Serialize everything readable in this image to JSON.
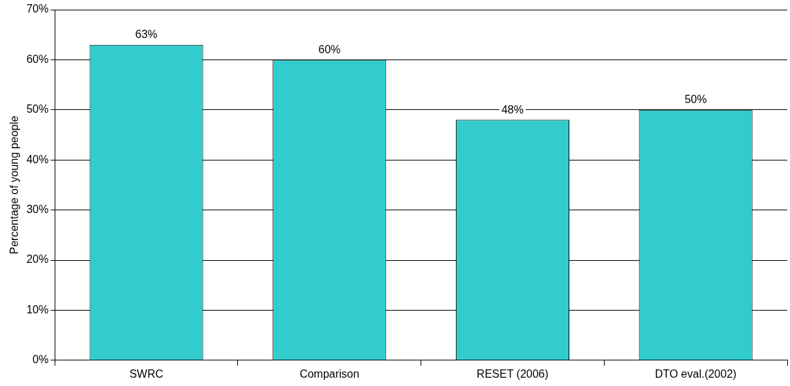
{
  "chart_data": {
    "type": "bar",
    "ylabel": "Percentage of young people",
    "categories": [
      "SWRC",
      "Comparison",
      "RESET (2006)",
      "DTO eval.(2002)"
    ],
    "values": [
      63,
      60,
      48,
      50
    ],
    "color": "#33cccc",
    "value_labels": [
      "63%",
      "60%",
      "48%",
      "50%"
    ],
    "ylim": [
      0,
      70
    ],
    "yticks": [
      {
        "value": 0,
        "label": "0%"
      },
      {
        "value": 10,
        "label": "10%"
      },
      {
        "value": 20,
        "label": "20%"
      },
      {
        "value": 30,
        "label": "30%"
      },
      {
        "value": 40,
        "label": "40%"
      },
      {
        "value": 50,
        "label": "50%"
      },
      {
        "value": 60,
        "label": "60%"
      },
      {
        "value": 70,
        "label": "70%"
      }
    ],
    "grid": "y",
    "legend": false
  }
}
